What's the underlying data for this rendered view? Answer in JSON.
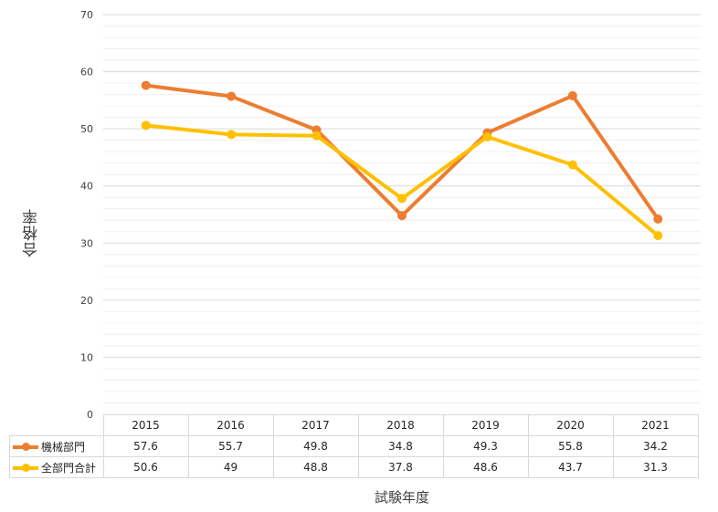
{
  "chart_data": {
    "type": "line",
    "categories": [
      "2015",
      "2016",
      "2017",
      "2018",
      "2019",
      "2020",
      "2021"
    ],
    "series": [
      {
        "name": "機械部門",
        "color": "#ED7D31",
        "values": [
          57.6,
          55.7,
          49.8,
          34.8,
          49.3,
          55.8,
          34.2
        ],
        "labels": [
          "57.6",
          "55.7",
          "49.8",
          "34.8",
          "49.3",
          "55.8",
          "34.2"
        ]
      },
      {
        "name": "全部門合計",
        "color": "#FFC000",
        "values": [
          50.6,
          49.0,
          48.8,
          37.8,
          48.6,
          43.7,
          31.3
        ],
        "labels": [
          "50.6",
          "49",
          "48.8",
          "37.8",
          "48.6",
          "43.7",
          "31.3"
        ]
      }
    ],
    "ylim": [
      0,
      70
    ],
    "yticks": [
      "0",
      "10",
      "20",
      "30",
      "40",
      "50",
      "60",
      "70"
    ],
    "ylabel": "合格率",
    "xlabel": "試験年度",
    "grid": true,
    "legend": "data-table"
  }
}
